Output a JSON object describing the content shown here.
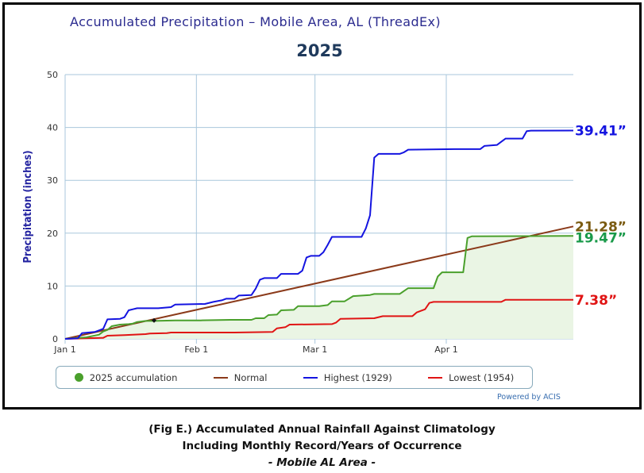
{
  "title": "Accumulated Precipitation – Mobile Area, AL (ThreadEx)",
  "year_label": "2025",
  "powered_by": "Powered by ACIS",
  "caption": {
    "line1": "(Fig E.) Accumulated Annual Rainfall Against  Climatology",
    "line2": "Including Monthly Record/Years of Occurrence",
    "line3": "- Mobile AL Area -"
  },
  "end_labels": {
    "highest": "39.41”",
    "normal": "21.28”",
    "accum": "19.47”",
    "lowest": "7.38”"
  },
  "legend": [
    {
      "label": "2025 accumulation",
      "color": "#4aa02c",
      "kind": "dot"
    },
    {
      "label": "Normal",
      "color": "#8b3a1a",
      "kind": "line"
    },
    {
      "label": "Highest (1929)",
      "color": "#1414e0",
      "kind": "line"
    },
    {
      "label": "Lowest (1954)",
      "color": "#e01414",
      "kind": "line"
    }
  ],
  "colors": {
    "accum": "#4aa02c",
    "accum_fill": "#eaf5e4",
    "normal": "#8b3a1a",
    "highest": "#1414e0",
    "lowest": "#e01414",
    "grid": "#a9c7dc",
    "normal_label": "#7a5a10",
    "accum_label": "#1a9a4a"
  },
  "chart_data": {
    "type": "line",
    "title": "Accumulated Precipitation – Mobile Area, AL (ThreadEx)",
    "subtitle": "2025",
    "xlabel": "",
    "ylabel": "Precipitation (inches)",
    "x_unit": "day of year (Jan 1 = 1)",
    "xlim": [
      1,
      121
    ],
    "ylim": [
      0,
      50
    ],
    "yticks": [
      0,
      10,
      20,
      30,
      40,
      50
    ],
    "xticks": [
      {
        "x": 1,
        "label": "Jan 1"
      },
      {
        "x": 32,
        "label": "Feb 1"
      },
      {
        "x": 60,
        "label": "Mar 1"
      },
      {
        "x": 91,
        "label": "Apr 1"
      }
    ],
    "grid": true,
    "legend_position": "bottom",
    "series": [
      {
        "name": "2025 accumulation",
        "key": "accum",
        "fill": true,
        "points": [
          [
            1,
            0
          ],
          [
            6,
            0.3
          ],
          [
            9,
            0.8
          ],
          [
            10,
            1.4
          ],
          [
            11,
            1.7
          ],
          [
            12,
            2.4
          ],
          [
            14,
            2.7
          ],
          [
            16,
            2.8
          ],
          [
            17,
            2.9
          ],
          [
            18,
            3.2
          ],
          [
            20,
            3.4
          ],
          [
            22,
            3.4
          ],
          [
            27,
            3.5
          ],
          [
            33,
            3.5
          ],
          [
            40,
            3.6
          ],
          [
            45,
            3.6
          ],
          [
            46,
            3.9
          ],
          [
            48,
            3.9
          ],
          [
            49,
            4.5
          ],
          [
            51,
            4.6
          ],
          [
            52,
            5.4
          ],
          [
            55,
            5.5
          ],
          [
            56,
            6.2
          ],
          [
            61,
            6.2
          ],
          [
            63,
            6.4
          ],
          [
            64,
            7.1
          ],
          [
            67,
            7.1
          ],
          [
            69,
            8.1
          ],
          [
            73,
            8.3
          ],
          [
            74,
            8.5
          ],
          [
            80,
            8.5
          ],
          [
            82,
            9.6
          ],
          [
            88,
            9.6
          ],
          [
            89,
            11.8
          ],
          [
            90,
            12.6
          ],
          [
            95,
            12.6
          ],
          [
            96,
            19.1
          ],
          [
            97,
            19.4
          ],
          [
            121,
            19.47
          ]
        ]
      },
      {
        "name": "Normal",
        "key": "normal",
        "points": [
          [
            1,
            0
          ],
          [
            121,
            21.28
          ]
        ]
      },
      {
        "name": "Highest (1929)",
        "key": "highest",
        "points": [
          [
            1,
            0
          ],
          [
            4,
            0.1
          ],
          [
            5,
            1.1
          ],
          [
            8,
            1.3
          ],
          [
            9,
            1.6
          ],
          [
            10,
            1.9
          ],
          [
            11,
            3.7
          ],
          [
            14,
            3.8
          ],
          [
            15,
            4.1
          ],
          [
            16,
            5.4
          ],
          [
            17,
            5.6
          ],
          [
            18,
            5.8
          ],
          [
            23,
            5.8
          ],
          [
            26,
            6.0
          ],
          [
            27,
            6.5
          ],
          [
            34,
            6.6
          ],
          [
            36,
            7.0
          ],
          [
            38,
            7.3
          ],
          [
            39,
            7.6
          ],
          [
            41,
            7.6
          ],
          [
            42,
            8.2
          ],
          [
            45,
            8.3
          ],
          [
            46,
            9.5
          ],
          [
            47,
            11.2
          ],
          [
            48,
            11.5
          ],
          [
            51,
            11.5
          ],
          [
            52,
            12.3
          ],
          [
            56,
            12.3
          ],
          [
            57,
            12.9
          ],
          [
            58,
            15.4
          ],
          [
            59,
            15.7
          ],
          [
            61,
            15.7
          ],
          [
            62,
            16.4
          ],
          [
            63,
            17.8
          ],
          [
            64,
            19.3
          ],
          [
            71,
            19.3
          ],
          [
            72,
            20.9
          ],
          [
            73,
            23.4
          ],
          [
            74,
            34.3
          ],
          [
            75,
            35.0
          ],
          [
            80,
            35.0
          ],
          [
            81,
            35.3
          ],
          [
            82,
            35.8
          ],
          [
            93,
            35.9
          ],
          [
            99,
            35.9
          ],
          [
            100,
            36.5
          ],
          [
            103,
            36.7
          ],
          [
            104,
            37.3
          ],
          [
            105,
            37.9
          ],
          [
            109,
            37.9
          ],
          [
            110,
            39.3
          ],
          [
            111,
            39.4
          ],
          [
            121,
            39.41
          ]
        ]
      },
      {
        "name": "Lowest (1954)",
        "key": "lowest",
        "points": [
          [
            1,
            0
          ],
          [
            6,
            0.1
          ],
          [
            10,
            0.2
          ],
          [
            11,
            0.6
          ],
          [
            15,
            0.7
          ],
          [
            20,
            0.9
          ],
          [
            21,
            1.0
          ],
          [
            25,
            1.1
          ],
          [
            26,
            1.2
          ],
          [
            41,
            1.2
          ],
          [
            50,
            1.3
          ],
          [
            51,
            2.0
          ],
          [
            53,
            2.2
          ],
          [
            54,
            2.7
          ],
          [
            64,
            2.8
          ],
          [
            65,
            3.1
          ],
          [
            66,
            3.8
          ],
          [
            74,
            3.9
          ],
          [
            76,
            4.3
          ],
          [
            83,
            4.3
          ],
          [
            84,
            5.0
          ],
          [
            86,
            5.6
          ],
          [
            87,
            6.8
          ],
          [
            88,
            7.0
          ],
          [
            104,
            7.0
          ],
          [
            105,
            7.4
          ],
          [
            121,
            7.38
          ]
        ]
      }
    ]
  }
}
